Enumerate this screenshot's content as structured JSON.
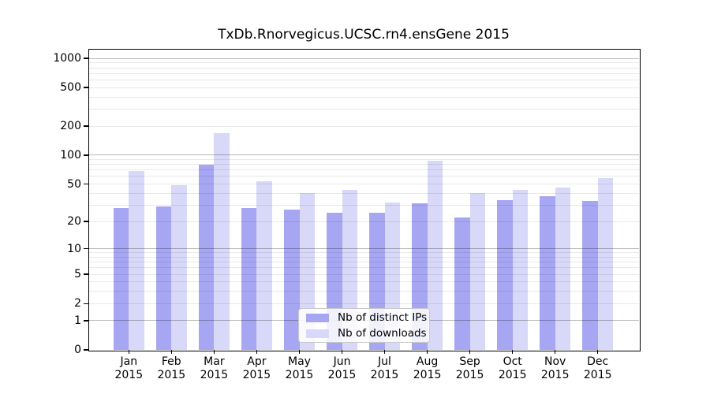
{
  "chart_data": {
    "type": "bar",
    "title": "TxDb.Rnorvegicus.UCSC.rn4.ensGene 2015",
    "categories": [
      "Jan",
      "Feb",
      "Mar",
      "Apr",
      "May",
      "Jun",
      "Jul",
      "Aug",
      "Sep",
      "Oct",
      "Nov",
      "Dec"
    ],
    "x_sublabel": "2015",
    "series": [
      {
        "name": "Nb of distinct IPs",
        "color": "#a6a6f2",
        "values": [
          28,
          29,
          80,
          28,
          27,
          25,
          25,
          31,
          22,
          34,
          37,
          33
        ]
      },
      {
        "name": "Nb of downloads",
        "color": "#d8d8f8",
        "values": [
          68,
          49,
          170,
          53,
          40,
          43,
          32,
          88,
          40,
          43,
          46,
          58
        ]
      }
    ],
    "xlabel": "",
    "ylabel": "",
    "y_scale": "log1p",
    "ylim": [
      0,
      1000
    ],
    "y_ticks": [
      0,
      1,
      2,
      5,
      10,
      20,
      50,
      100,
      200,
      500,
      1000
    ],
    "grid": true,
    "grid_major": [
      1,
      10,
      100,
      1000
    ],
    "grid_minor": [
      2,
      3,
      4,
      5,
      6,
      7,
      8,
      9,
      20,
      30,
      40,
      50,
      60,
      70,
      80,
      90,
      200,
      300,
      400,
      500,
      600,
      700,
      800,
      900
    ],
    "legend_position": "bottom-center",
    "colors": {
      "distinct_ips": "#a6a6f2",
      "downloads": "#d8d8f8",
      "grid_major": "#b4b4b4",
      "grid_minor": "#e8e8e8",
      "axis": "#000000",
      "background": "#ffffff"
    }
  }
}
